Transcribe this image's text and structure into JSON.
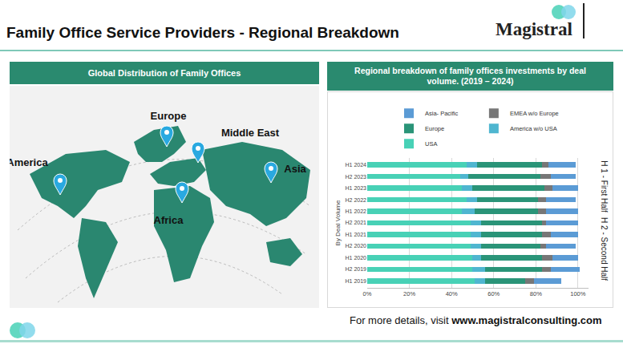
{
  "header": {
    "title": "Family Office Service Providers - Regional Breakdown",
    "logo": "Magistral"
  },
  "map": {
    "title": "Global Distribution of Family Offices",
    "labels": [
      "Europe",
      "Middle East",
      "America",
      "Asia",
      "Africa"
    ]
  },
  "chart_data": {
    "type": "bar",
    "title": "Regional breakdown of family offices investments by deal volume. (2019 – 2024)",
    "ylabel": "By Deal Volume",
    "orientation": "horizontal",
    "stacked": true,
    "grid": true,
    "legend": "top",
    "annotations": [
      "H 1 - First Half",
      "H 2 - Second Half"
    ],
    "categories": [
      "H1 2019",
      "H2 2019",
      "H1 2020",
      "H2 2020",
      "H1 2021",
      "H2 2021",
      "H1 2022",
      "H2 2022",
      "H1 2023",
      "H2 2023",
      "H1 2024"
    ],
    "series": [
      {
        "name": "USA",
        "color": "#48d1b6",
        "values": [
          51,
          50,
          50,
          49,
          49,
          49,
          45,
          47,
          45,
          44,
          47
        ]
      },
      {
        "name": "America w/o USA",
        "color": "#4fb6d0",
        "values": [
          5,
          6,
          4,
          5,
          5,
          5,
          6,
          5,
          5,
          4,
          5
        ]
      },
      {
        "name": "Europe",
        "color": "#2a9478",
        "values": [
          19,
          27,
          29,
          28,
          29,
          29,
          30,
          29,
          34,
          34,
          31
        ]
      },
      {
        "name": "EMEA w/o Europe",
        "color": "#777777",
        "values": [
          4,
          4,
          5,
          3,
          4,
          2,
          4,
          4,
          4,
          5,
          3
        ]
      },
      {
        "name": "Asia- Pacific",
        "color": "#5b9bd5",
        "values": [
          13,
          14,
          12,
          14,
          13,
          15,
          15,
          14,
          12,
          12,
          13
        ]
      }
    ],
    "xlim": [
      0,
      105
    ],
    "xticks": [
      {
        "value": 0,
        "label": "0%"
      },
      {
        "value": 20,
        "label": "20%"
      },
      {
        "value": 40,
        "label": "40%"
      },
      {
        "value": 60,
        "label": "60%"
      },
      {
        "value": 80,
        "label": "80%"
      },
      {
        "value": 100,
        "label": "100%"
      }
    ]
  },
  "footer": {
    "text": "For more details, visit ",
    "link": "www.magistralconsulting.com"
  }
}
